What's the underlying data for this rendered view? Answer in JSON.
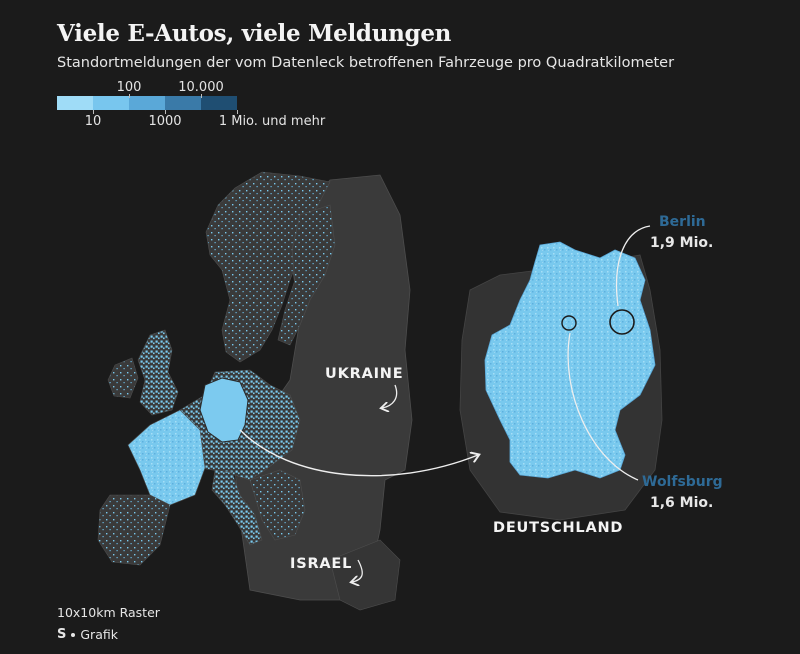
{
  "title": "Viele E-Autos, viele Meldungen",
  "subtitle": "Standortmeldungen der vom Datenleck betroffenen Fahrzeuge pro Quadratkilometer",
  "legend": {
    "labels_top": [
      "100",
      "10.000"
    ],
    "labels_bottom": [
      "10",
      "1000",
      "1 Mio. und mehr"
    ],
    "colors": [
      "#9fdcf7",
      "#78c6ee",
      "#5aa8d8",
      "#3a7aa8",
      "#1f4e72"
    ]
  },
  "map": {
    "labels": {
      "ukraine": "UKRAINE",
      "israel": "ISRAEL",
      "deutschland": "DEUTSCHLAND"
    },
    "cities": {
      "berlin": {
        "name": "Berlin",
        "value": "1,9 Mio."
      },
      "wolfsburg": {
        "name": "Wolfsburg",
        "value": "1,6 Mio."
      }
    },
    "colors": {
      "land": "#3a3a3a",
      "land_border": "#565656",
      "data": "#79c9ee",
      "accent_name": "#2e6a96"
    }
  },
  "footer": {
    "raster": "10x10km Raster",
    "logo": "S",
    "source": "Grafik"
  }
}
